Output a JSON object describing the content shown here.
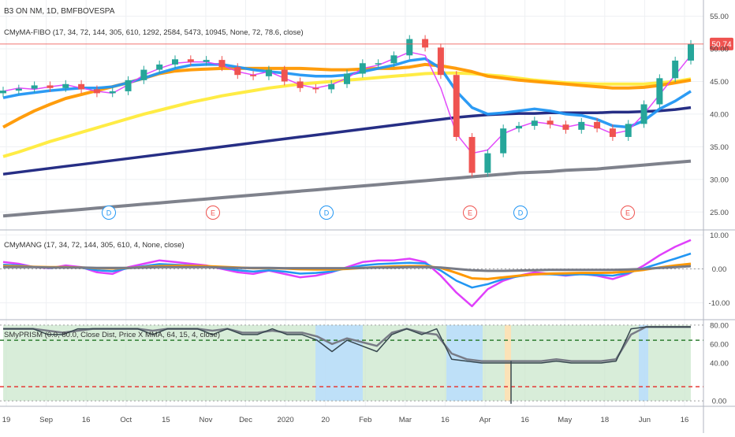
{
  "colors": {
    "background": "#ffffff",
    "grid": "#eef0f3",
    "separator": "#b0b6c0",
    "axis_text": "#4a4a4a",
    "title_text": "#333333",
    "up_candle": "#26a69a",
    "down_candle": "#ef5350",
    "price_line": "#ef5350",
    "price_badge": "#ef5350",
    "magenta": "#e040fb",
    "blue": "#2196f3",
    "orange": "#ff9800",
    "yellow": "#ffeb3b",
    "navy": "#1a237e",
    "gray": "#787b86",
    "green_fill": "#c8e6c9",
    "blue_band": "#bbdefb",
    "orange_band": "#ffe0b2",
    "green_dash": "#2e7d32",
    "red_dash": "#e53935",
    "dark_line": "#37474f"
  },
  "chart_data": [
    {
      "type": "candlestick",
      "title": "B3 ON NM, 1D, BMFBOVESPA",
      "indicator_label": "CMyMA-FIBO (17, 34, 72, 144, 305, 610, 1292, 2584, 5473, 10945, None, 72, 78.6, close)",
      "last_price": "50.74",
      "ylim": [
        22.5,
        57
      ],
      "y_ticks": [
        "55.00",
        "50.00",
        "45.00",
        "40.00",
        "35.00",
        "30.00",
        "25.00"
      ],
      "x_labels": [
        "19",
        "Sep",
        "16",
        "Oct",
        "15",
        "Nov",
        "Dec",
        "2020",
        "20",
        "Feb",
        "Mar",
        "16",
        "Apr",
        "16",
        "May",
        "18",
        "Jun",
        "16"
      ],
      "event_markers": [
        {
          "label": "D",
          "kind": "dividend",
          "x_index": 0
        },
        {
          "label": "E",
          "kind": "earnings",
          "x_index": 1
        },
        {
          "label": "D",
          "kind": "dividend",
          "x_index": 2
        },
        {
          "label": "E",
          "kind": "earnings",
          "x_index": 3
        },
        {
          "label": "D",
          "kind": "dividend",
          "x_index": 4
        },
        {
          "label": "E",
          "kind": "earnings",
          "x_index": 5
        }
      ],
      "series": [
        {
          "color": "magenta",
          "values": [
            43.5,
            44.0,
            43.8,
            44.2,
            44.5,
            44.0,
            43.5,
            43.2,
            44.5,
            46.0,
            47.0,
            47.8,
            48.0,
            48.0,
            47.5,
            46.5,
            46.0,
            46.5,
            45.5,
            44.5,
            44.0,
            44.5,
            45.5,
            47.0,
            47.5,
            48.5,
            49.5,
            49.0,
            44.0,
            37.0,
            34.0,
            34.5,
            37.0,
            38.0,
            38.8,
            38.5,
            38.0,
            38.5,
            38.0,
            37.0,
            37.5,
            40.0,
            43.0,
            46.0,
            49.0
          ]
        },
        {
          "color": "blue",
          "values": [
            42.5,
            43.0,
            43.3,
            43.6,
            43.8,
            44.0,
            44.0,
            44.2,
            44.8,
            45.5,
            46.3,
            47.0,
            47.5,
            47.6,
            47.6,
            47.2,
            46.8,
            46.5,
            46.3,
            46.0,
            45.8,
            45.8,
            46.0,
            46.5,
            47.0,
            47.5,
            48.2,
            48.5,
            47.0,
            43.5,
            41.0,
            40.0,
            40.2,
            40.5,
            40.8,
            40.5,
            40.0,
            39.8,
            39.2,
            38.2,
            38.0,
            39.0,
            40.8,
            42.0,
            43.5
          ]
        },
        {
          "color": "orange",
          "values": [
            38.0,
            39.3,
            40.5,
            41.5,
            42.4,
            43.0,
            43.6,
            44.2,
            44.8,
            45.5,
            46.2,
            46.6,
            46.8,
            46.9,
            47.0,
            47.0,
            47.0,
            47.0,
            47.0,
            47.0,
            46.9,
            46.8,
            46.8,
            46.9,
            47.0,
            47.0,
            47.2,
            47.6,
            47.4,
            47.0,
            46.5,
            45.8,
            45.5,
            45.2,
            45.0,
            44.8,
            44.6,
            44.4,
            44.2,
            44.0,
            44.0,
            44.1,
            44.4,
            44.8,
            45.2
          ]
        },
        {
          "color": "yellow",
          "values": [
            33.5,
            34.2,
            35.0,
            35.8,
            36.5,
            37.2,
            37.9,
            38.6,
            39.3,
            40.0,
            40.6,
            41.2,
            41.8,
            42.3,
            42.8,
            43.2,
            43.6,
            44.0,
            44.3,
            44.6,
            44.8,
            45.0,
            45.2,
            45.4,
            45.6,
            45.8,
            46.0,
            46.2,
            46.3,
            46.3,
            46.2,
            46.0,
            45.8,
            45.5,
            45.2,
            45.0,
            44.8,
            44.7,
            44.6,
            44.6,
            44.6,
            44.6,
            44.8,
            45.0,
            45.4
          ]
        },
        {
          "color": "navy",
          "values": [
            30.8,
            31.1,
            31.4,
            31.7,
            32.0,
            32.3,
            32.6,
            32.9,
            33.2,
            33.5,
            33.8,
            34.1,
            34.4,
            34.7,
            35.0,
            35.3,
            35.6,
            35.9,
            36.2,
            36.5,
            36.8,
            37.1,
            37.4,
            37.7,
            38.0,
            38.3,
            38.6,
            38.9,
            39.2,
            39.5,
            39.7,
            39.9,
            40.0,
            40.1,
            40.1,
            40.2,
            40.2,
            40.2,
            40.2,
            40.3,
            40.3,
            40.4,
            40.5,
            40.7,
            41.0
          ]
        },
        {
          "color": "gray",
          "values": [
            24.4,
            24.6,
            24.8,
            25.0,
            25.2,
            25.4,
            25.6,
            25.8,
            26.0,
            26.2,
            26.4,
            26.6,
            26.8,
            27.0,
            27.2,
            27.4,
            27.6,
            27.8,
            28.0,
            28.2,
            28.4,
            28.6,
            28.8,
            29.0,
            29.2,
            29.4,
            29.6,
            29.8,
            30.0,
            30.2,
            30.4,
            30.6,
            30.8,
            31.0,
            31.1,
            31.2,
            31.4,
            31.5,
            31.6,
            31.8,
            32.0,
            32.2,
            32.4,
            32.6,
            32.8
          ]
        }
      ],
      "close_values": [
        43.6,
        43.9,
        44.4,
        44.0,
        44.6,
        43.8,
        43.2,
        43.5,
        45.2,
        46.8,
        47.6,
        48.4,
        48.0,
        48.3,
        47.2,
        46.0,
        45.8,
        46.8,
        45.0,
        44.0,
        43.8,
        44.6,
        46.2,
        47.8,
        47.8,
        49.0,
        51.5,
        50.2,
        46.0,
        36.5,
        31.0,
        34.0,
        37.8,
        38.2,
        39.0,
        38.4,
        37.6,
        38.8,
        37.8,
        36.5,
        38.5,
        41.5,
        45.5,
        48.2,
        50.74
      ]
    },
    {
      "type": "line",
      "title": "CMyMANG (17, 34, 72, 144, 305, 610, 4, None, close)",
      "ylim": [
        -14.5,
        11
      ],
      "y_ticks": [
        "10.00",
        "0.00",
        "-10.00"
      ],
      "series": [
        {
          "color": "magenta",
          "values": [
            2.0,
            1.5,
            0.5,
            0.2,
            1.0,
            0.5,
            -1.0,
            -1.5,
            0.5,
            1.5,
            2.5,
            2.0,
            1.5,
            1.0,
            0.0,
            -1.0,
            -1.5,
            -0.5,
            -1.5,
            -2.5,
            -2.0,
            -1.0,
            0.5,
            2.0,
            2.5,
            2.5,
            3.0,
            2.0,
            -2.0,
            -7.0,
            -11.0,
            -6.0,
            -3.5,
            -2.0,
            -1.0,
            -1.5,
            -2.0,
            -1.5,
            -2.0,
            -3.0,
            -1.5,
            1.0,
            4.0,
            6.5,
            8.5
          ]
        },
        {
          "color": "blue",
          "values": [
            1.2,
            1.0,
            0.6,
            0.3,
            0.6,
            0.3,
            -0.4,
            -0.7,
            0.2,
            0.8,
            1.4,
            1.2,
            1.0,
            0.8,
            0.2,
            -0.4,
            -0.8,
            -0.4,
            -0.8,
            -1.4,
            -1.2,
            -0.8,
            0.2,
            1.0,
            1.4,
            1.6,
            1.8,
            1.6,
            -0.5,
            -3.5,
            -5.5,
            -4.5,
            -3.0,
            -2.2,
            -1.6,
            -1.6,
            -1.8,
            -1.6,
            -1.8,
            -2.0,
            -1.2,
            0.2,
            1.6,
            3.0,
            4.5
          ]
        },
        {
          "color": "orange",
          "values": [
            0.8,
            0.7,
            0.6,
            0.5,
            0.5,
            0.4,
            0.2,
            0.1,
            0.3,
            0.5,
            0.8,
            0.9,
            0.9,
            0.8,
            0.6,
            0.4,
            0.2,
            0.2,
            0.1,
            -0.1,
            -0.2,
            -0.2,
            0.0,
            0.3,
            0.5,
            0.7,
            0.8,
            0.8,
            0.3,
            -1.2,
            -2.8,
            -3.0,
            -2.5,
            -2.0,
            -1.6,
            -1.4,
            -1.3,
            -1.2,
            -1.2,
            -1.1,
            -0.8,
            -0.3,
            0.4,
            1.0,
            1.5
          ]
        },
        {
          "color": "gray",
          "values": [
            0.5,
            0.5,
            0.5,
            0.4,
            0.4,
            0.4,
            0.3,
            0.3,
            0.3,
            0.4,
            0.5,
            0.5,
            0.5,
            0.5,
            0.4,
            0.3,
            0.3,
            0.3,
            0.2,
            0.2,
            0.2,
            0.2,
            0.2,
            0.3,
            0.4,
            0.4,
            0.5,
            0.5,
            0.4,
            0.0,
            -0.4,
            -0.6,
            -0.6,
            -0.5,
            -0.4,
            -0.3,
            -0.3,
            -0.3,
            -0.3,
            -0.3,
            -0.2,
            0.0,
            0.3,
            0.5,
            0.8
          ]
        }
      ]
    },
    {
      "type": "line",
      "title": "SMyPRISM (0.0, 80.0, Close Dist, Price X MMA, 64, 15, 4, close)",
      "ylim": [
        -4,
        84
      ],
      "y_ticks": [
        "80.00",
        "60.00",
        "40.00",
        "0.00"
      ],
      "levels": [
        {
          "value": 64,
          "color": "green_dash"
        },
        {
          "value": 15,
          "color": "red_dash"
        }
      ],
      "series": [
        {
          "color": "dark_line",
          "values": [
            76,
            76,
            76,
            70,
            70,
            76,
            76,
            76,
            76,
            76,
            70,
            76,
            76,
            76,
            70,
            76,
            70,
            70,
            76,
            70,
            70,
            64,
            52,
            64,
            58,
            52,
            70,
            76,
            70,
            76,
            44,
            42,
            40,
            40,
            40,
            40,
            40,
            42,
            40,
            40,
            40,
            42,
            76,
            78,
            78,
            78,
            78
          ]
        },
        {
          "color": "gray",
          "values": [
            76,
            76,
            76,
            74,
            72,
            74,
            76,
            76,
            76,
            76,
            74,
            76,
            76,
            76,
            74,
            76,
            72,
            72,
            74,
            72,
            72,
            68,
            60,
            66,
            62,
            58,
            72,
            76,
            72,
            70,
            50,
            44,
            42,
            42,
            42,
            42,
            42,
            44,
            42,
            42,
            42,
            44,
            70,
            78,
            78,
            78,
            78
          ]
        }
      ]
    }
  ]
}
